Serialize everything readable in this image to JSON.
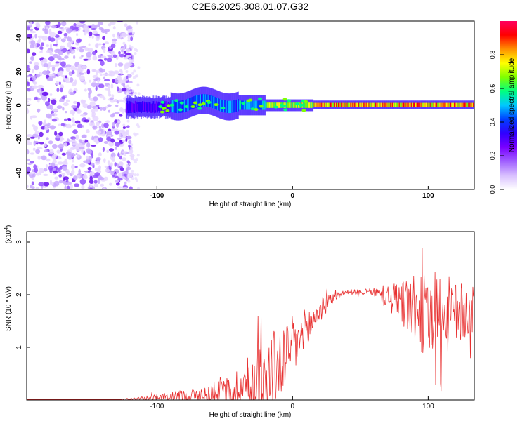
{
  "title": "C2E6.2025.308.01.07.G32",
  "chart_data": [
    {
      "type": "heatmap",
      "name": "spectrogram",
      "xlabel": "Height of straight line (km)",
      "ylabel": "Frequency (Hz)",
      "xlim": [
        -196,
        134
      ],
      "ylim": [
        -50,
        50
      ],
      "xticks": [
        -100,
        0,
        100
      ],
      "yticks": [
        -40,
        -20,
        0,
        20,
        40
      ],
      "noise_region_end_km": -118,
      "signal_start_km": -123,
      "colorbar": {
        "label": "Normalized spectral amplitude",
        "range": [
          0.0,
          1.0
        ],
        "ticks": [
          0.0,
          0.2,
          0.4,
          0.6,
          0.8
        ],
        "colors": [
          "#ffffff",
          "#d8bfff",
          "#a060ff",
          "#7a00ff",
          "#3000ff",
          "#0040ff",
          "#00c8ff",
          "#00ff80",
          "#80ff00",
          "#ffff00",
          "#ff9000",
          "#ff0000",
          "#ff0060"
        ]
      }
    },
    {
      "type": "line",
      "name": "snr",
      "xlabel": "Height of straight line (km)",
      "ylabel": "SNR (10 * v/v)",
      "yscale_label": "(x10",
      "yscale_exp": "4",
      "yscale_close": ")",
      "xlim": [
        -196,
        134
      ],
      "ylim": [
        0,
        3.2
      ],
      "xticks": [
        -100,
        0,
        100
      ],
      "yticks": [
        1,
        2,
        3
      ],
      "color": "#e83030",
      "envelope": {
        "x": [
          -196,
          -130,
          -110,
          -95,
          -80,
          -65,
          -50,
          -40,
          -30,
          -20,
          -10,
          0,
          10,
          20,
          30,
          40,
          50,
          60,
          70,
          80,
          90,
          100,
          110,
          120,
          134
        ],
        "base": [
          0.01,
          0.01,
          0.03,
          0.05,
          0.08,
          0.1,
          0.15,
          0.2,
          0.3,
          0.4,
          0.7,
          1.0,
          1.3,
          1.7,
          1.95,
          2.05,
          2.05,
          2.05,
          1.95,
          1.85,
          1.7,
          1.6,
          1.6,
          1.65,
          1.7
        ],
        "amp": [
          0.0,
          0.0,
          0.04,
          0.08,
          0.12,
          0.15,
          0.25,
          0.45,
          0.65,
          0.8,
          0.75,
          0.6,
          0.45,
          0.25,
          0.08,
          0.05,
          0.05,
          0.08,
          0.25,
          0.45,
          0.65,
          0.9,
          0.85,
          0.6,
          0.45
        ]
      }
    }
  ]
}
